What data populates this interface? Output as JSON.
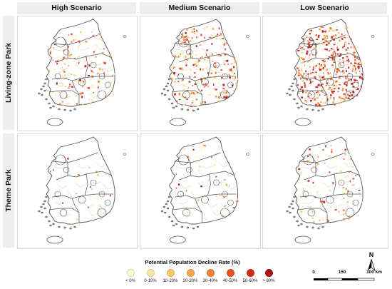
{
  "columns": [
    "High Scenario",
    "Medium Scenario",
    "Low Scenario"
  ],
  "rows": [
    "Living-zone Park",
    "Theme Park"
  ],
  "legend": {
    "title": "Potential Population Decline Rate (%)",
    "items": [
      {
        "label": "< 0%",
        "color": "#fffbd6"
      },
      {
        "label": "0-10%",
        "color": "#fde9a2"
      },
      {
        "label": "10-20%",
        "color": "#fcc96a"
      },
      {
        "label": "20-30%",
        "color": "#fba64a"
      },
      {
        "label": "30-40%",
        "color": "#f58234"
      },
      {
        "label": "40-50%",
        "color": "#ea5226"
      },
      {
        "label": "50-60%",
        "color": "#d32a20"
      },
      {
        "label": "> 60%",
        "color": "#a7141d"
      }
    ]
  },
  "north_arrow": {
    "label": "N"
  },
  "scale_bar": {
    "labels": [
      "0",
      "150",
      "300 km"
    ]
  },
  "colors": {
    "outline": "#555555",
    "district_lines": "#c8c8c8",
    "panel_header_bg": "#eeeeee"
  }
}
